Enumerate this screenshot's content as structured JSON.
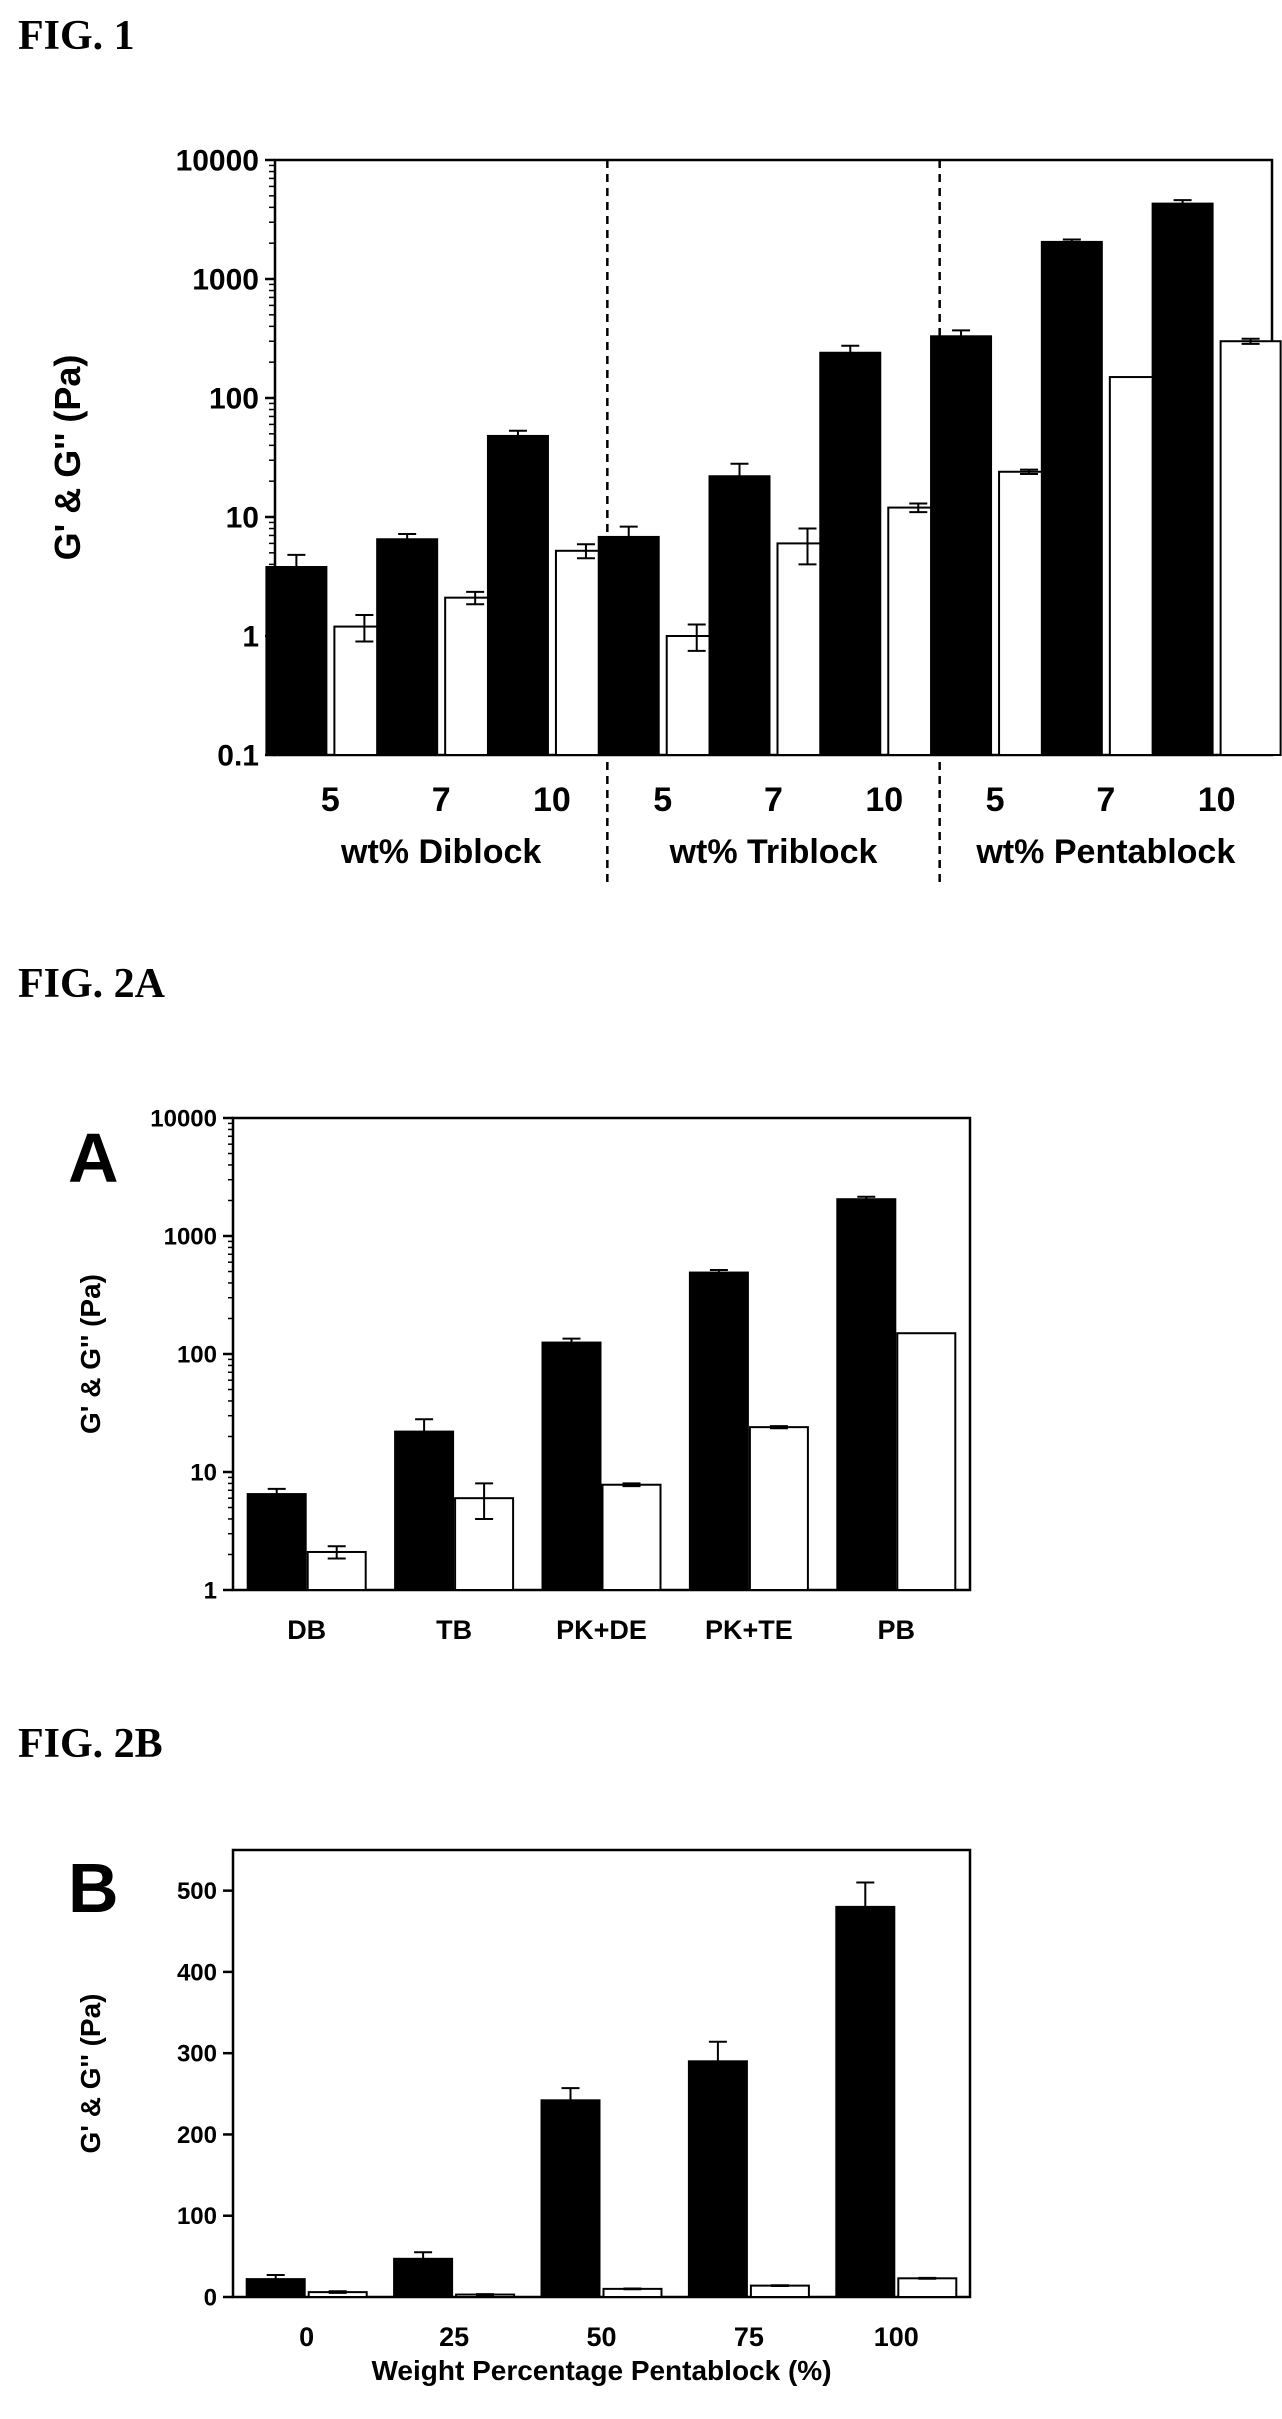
{
  "figures": {
    "fig1": "FIG. 1",
    "fig2a": "FIG. 2A",
    "fig2b": "FIG. 2B"
  },
  "colors": {
    "gprime": "#000000",
    "gdoubleprime": "#ffffff",
    "axis": "#000000"
  },
  "chart_data": [
    {
      "type": "bar",
      "scale": "log",
      "ylabel": "G' & G'' (Pa)",
      "ylim": [
        0.1,
        10000
      ],
      "yticks": [
        "0.1",
        "1",
        "10",
        "100",
        "1000",
        "10000"
      ],
      "categories": [
        "5",
        "7",
        "10",
        "5",
        "7",
        "10",
        "5",
        "7",
        "10"
      ],
      "groups": [
        "wt% Diblock",
        "wt% Triblock",
        "wt% Pentablock"
      ],
      "group_separators": "dashed",
      "series": [
        {
          "values": [
            3.8,
            6.5,
            48,
            6.8,
            22,
            240,
            330,
            2050,
            4300
          ],
          "errors": [
            1.0,
            0.7,
            5,
            1.5,
            6,
            35,
            40,
            100,
            300
          ]
        },
        {
          "values": [
            1.2,
            2.1,
            5.2,
            1.0,
            6.0,
            12,
            24,
            150,
            300
          ],
          "errors": [
            0.3,
            0.25,
            0.7,
            0.25,
            2.0,
            1.0,
            1.0,
            0,
            15
          ]
        }
      ]
    },
    {
      "type": "bar",
      "scale": "log",
      "panel": "A",
      "ylabel": "G' & G'' (Pa)",
      "ylim": [
        1,
        10000
      ],
      "yticks": [
        "1",
        "10",
        "100",
        "1000",
        "10000"
      ],
      "categories": [
        "DB",
        "TB",
        "PK+DE",
        "PK+TE",
        "PB"
      ],
      "series": [
        {
          "values": [
            6.5,
            22,
            125,
            490,
            2050
          ],
          "errors": [
            0.7,
            6,
            10,
            25,
            100
          ]
        },
        {
          "values": [
            2.1,
            6.0,
            7.8,
            24,
            150
          ],
          "errors": [
            0.25,
            2.0,
            0.2,
            0.5,
            0
          ]
        }
      ]
    },
    {
      "type": "bar",
      "scale": "linear",
      "panel": "B",
      "ylabel": "G' & G'' (Pa)",
      "xlabel": "Weight Percentage Pentablock (%)",
      "ylim": [
        0,
        550
      ],
      "yticks": [
        "0",
        "100",
        "200",
        "300",
        "400",
        "500"
      ],
      "categories": [
        "0",
        "25",
        "50",
        "75",
        "100"
      ],
      "series": [
        {
          "values": [
            22,
            47,
            242,
            290,
            480
          ],
          "errors": [
            5,
            8,
            15,
            24,
            30
          ]
        },
        {
          "values": [
            6,
            3,
            10,
            14,
            23
          ],
          "errors": [
            1,
            0.5,
            0.5,
            0.5,
            0.5
          ]
        }
      ]
    }
  ]
}
